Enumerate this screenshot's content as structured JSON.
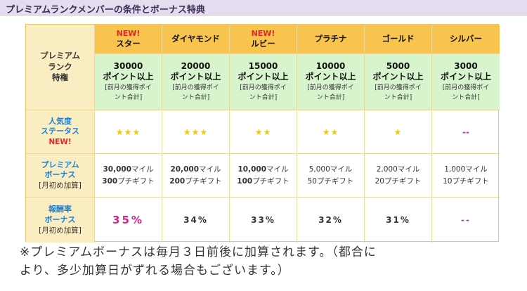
{
  "header": {
    "title": "プレミアムランクメンバーの条件とボーナス特典"
  },
  "table": {
    "corner": [
      "プレミアム",
      "ランク",
      "特権"
    ],
    "ranks": [
      {
        "new": "NEW!",
        "name": "スター",
        "points": "30000",
        "above": "ポイント以上",
        "note1": "[前月の獲得ポイ",
        "note2": "ント合計]",
        "stars": "★★★",
        "bonus_miles_num": "30,000",
        "bonus_miles_unit": "マイル",
        "bonus_gift_num": "300",
        "bonus_gift_unit": "プチギフト",
        "rate": "35%"
      },
      {
        "new": "",
        "name": "ダイヤモンド",
        "points": "20000",
        "above": "ポイント以上",
        "note1": "[前月の獲得ポイ",
        "note2": "ント合計]",
        "stars": "★★★",
        "bonus_miles_num": "20,000",
        "bonus_miles_unit": "マイル",
        "bonus_gift_num": "200",
        "bonus_gift_unit": "プチギフト",
        "rate": "34%"
      },
      {
        "new": "NEW!",
        "name": "ルビー",
        "points": "15000",
        "above": "ポイント以上",
        "note1": "[前月の獲得ポイ",
        "note2": "ント合計]",
        "stars": "★★",
        "bonus_miles_num": "10,000",
        "bonus_miles_unit": "マイル",
        "bonus_gift_num": "100",
        "bonus_gift_unit": "プチギフト",
        "rate": "33%"
      },
      {
        "new": "",
        "name": "プラチナ",
        "points": "10000",
        "above": "ポイント以上",
        "note1": "[前月の獲得ポイ",
        "note2": "ント合計]",
        "stars": "★★",
        "bonus_miles_num": "5,000",
        "bonus_miles_unit": "マイル",
        "bonus_gift_num": "50",
        "bonus_gift_unit": "プチギフト",
        "rate": "32%"
      },
      {
        "new": "",
        "name": "ゴールド",
        "points": "5000",
        "above": "ポイント以上",
        "note1": "[前月の獲得ポイ",
        "note2": "ント合計]",
        "stars": "★",
        "bonus_miles_num": "2,000",
        "bonus_miles_unit": "マイル",
        "bonus_gift_num": "20",
        "bonus_gift_unit": "プチギフト",
        "rate": "31%"
      },
      {
        "new": "",
        "name": "シルバー",
        "points": "3000",
        "above": "ポイント以上",
        "note1": "[前月の獲得ポイ",
        "note2": "ント合計]",
        "stars": "--",
        "bonus_miles_num": "1,000",
        "bonus_miles_unit": "マイル",
        "bonus_gift_num": "10",
        "bonus_gift_unit": "プチギフト",
        "rate": "--"
      }
    ],
    "row_popularity": {
      "line1": "人気度",
      "line2": "ステータス",
      "badge": "NEW!"
    },
    "row_bonus": {
      "line1": "プレミアム",
      "line2": "ボーナス",
      "sub": "[月初め加算]"
    },
    "row_rate": {
      "line1": "報酬率",
      "line2": "ボーナス",
      "sub": "[月初め加算]"
    }
  },
  "footnote": {
    "line1": "※プレミアムボーナスは毎月３日前後に加算されます。（都合に",
    "line2": "より、多少加算日がずれる場合もございます。）"
  },
  "colors": {
    "header_bg": "#e6dcf0",
    "rank_header": "#f8c44e",
    "requirement_bg": "#d7f5cc",
    "label_bg": "#fbedc2",
    "highlight_rate": "#d8218a",
    "star": "#f5c800",
    "label_blue": "#1e7fd2",
    "new_red": "#e3262b"
  }
}
